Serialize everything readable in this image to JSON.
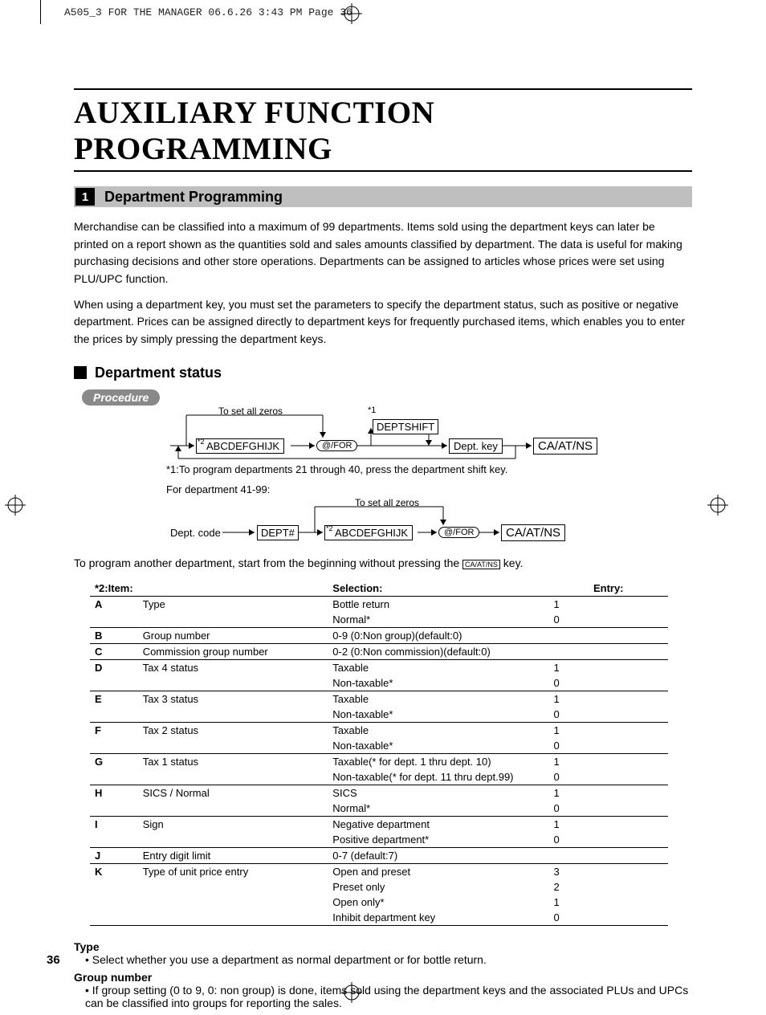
{
  "crop_header": "A505_3 FOR THE MANAGER  06.6.26 3:43 PM  Page 36",
  "main_title": "AUXILIARY FUNCTION PROGRAMMING",
  "section": {
    "num": "1",
    "title": "Department Programming"
  },
  "para1": "Merchandise can be classified into a maximum of 99 departments.  Items sold using the department keys can later be printed on a report shown as the quantities sold and sales amounts classified by department.  The data is useful for making purchasing decisions and other store operations.  Departments can be assigned to articles whose prices were set using PLU/UPC function.",
  "para2": "When using a department key, you must set the parameters to specify the department status, such as positive or negative department.  Prices can be assigned directly to department keys for frequently purchased items, which enables you to enter the prices by simply pressing the department keys.",
  "subhead": "Department status",
  "procedure_label": "Procedure",
  "diagram1": {
    "zeros_label": "To set all zeros",
    "star1": "*1",
    "star2": "*2",
    "abc": "ABCDEFGHIJK",
    "at_for": "@/FOR",
    "deptshift": "DEPTSHIFT",
    "deptkey": "Dept. key",
    "caatns": "CA/AT/NS"
  },
  "note_star1": "*1:To program departments 21 through 40, press the department shift key.",
  "note_41_99": "For department 41-99:",
  "diagram2": {
    "dept_code": "Dept. code",
    "dept_hash": "DEPT#",
    "zeros_label": "To set all zeros",
    "star2": "*2",
    "abc": "ABCDEFGHIJK",
    "at_for": "@/FOR",
    "caatns": "CA/AT/NS"
  },
  "footer_sentence_a": "To program another department, start from the beginning without pressing the ",
  "footer_sentence_key": "CA/AT/NS",
  "footer_sentence_b": " key.",
  "table": {
    "header_prefix": "*2:",
    "headers": {
      "item": "Item:",
      "selection": "Selection:",
      "entry": "Entry:"
    },
    "rows": [
      {
        "l": "A",
        "item": "Type",
        "sel": "Bottle return",
        "e": "1",
        "sep": false
      },
      {
        "l": "",
        "item": "",
        "sel": "Normal*",
        "e": "0",
        "sep": true
      },
      {
        "l": "B",
        "item": "Group number",
        "sel": "0-9 (0:Non group)(default:0)",
        "e": "",
        "merge": true,
        "sep": true
      },
      {
        "l": "C",
        "item": "Commission group number",
        "sel": "0-2 (0:Non commission)(default:0)",
        "e": "",
        "merge": true,
        "sep": true
      },
      {
        "l": "D",
        "item": "Tax 4 status",
        "sel": "Taxable",
        "e": "1",
        "sep": false
      },
      {
        "l": "",
        "item": "",
        "sel": "Non-taxable*",
        "e": "0",
        "sep": true
      },
      {
        "l": "E",
        "item": "Tax 3 status",
        "sel": "Taxable",
        "e": "1",
        "sep": false
      },
      {
        "l": "",
        "item": "",
        "sel": "Non-taxable*",
        "e": "0",
        "sep": true
      },
      {
        "l": "F",
        "item": "Tax 2 status",
        "sel": "Taxable",
        "e": "1",
        "sep": false
      },
      {
        "l": "",
        "item": "",
        "sel": "Non-taxable*",
        "e": "0",
        "sep": true
      },
      {
        "l": "G",
        "item": "Tax 1 status",
        "sel": "Taxable(* for dept. 1 thru dept. 10)",
        "e": "1",
        "sep": false
      },
      {
        "l": "",
        "item": "",
        "sel": "Non-taxable(* for dept. 11 thru dept.99)",
        "e": "0",
        "sep": true
      },
      {
        "l": "H",
        "item": "SICS / Normal",
        "sel": "SICS",
        "e": "1",
        "sep": false
      },
      {
        "l": "",
        "item": "",
        "sel": "Normal*",
        "e": "0",
        "sep": true
      },
      {
        "l": "I",
        "item": "Sign",
        "sel": "Negative department",
        "e": "1",
        "sep": false
      },
      {
        "l": "",
        "item": "",
        "sel": "Positive department*",
        "e": "0",
        "sep": true
      },
      {
        "l": "J",
        "item": "Entry digit limit",
        "sel": "0-7 (default:7)",
        "e": "",
        "merge": true,
        "sep": true
      },
      {
        "l": "K",
        "item": "Type of unit price entry",
        "sel": "Open and preset",
        "e": "3",
        "sep": false
      },
      {
        "l": "",
        "item": "",
        "sel": "Preset only",
        "e": "2",
        "sep": false
      },
      {
        "l": "",
        "item": "",
        "sel": "Open only*",
        "e": "1",
        "sep": false
      },
      {
        "l": "",
        "item": "",
        "sel": "Inhibit department key",
        "e": "0",
        "sep": true
      }
    ]
  },
  "defs": {
    "type_t": "Type",
    "type_d": "Select whether you use a department as normal department or for bottle return.",
    "group_t": "Group number",
    "group_d": "If group setting (0 to 9, 0: non group) is done, items sold using the department keys and the associated PLUs and UPCs can be classified into groups for reporting the sales."
  },
  "page_number": "36",
  "colors": {
    "bar_bg": "#bfbfbf",
    "pill_bg": "#898989",
    "black": "#000000"
  }
}
